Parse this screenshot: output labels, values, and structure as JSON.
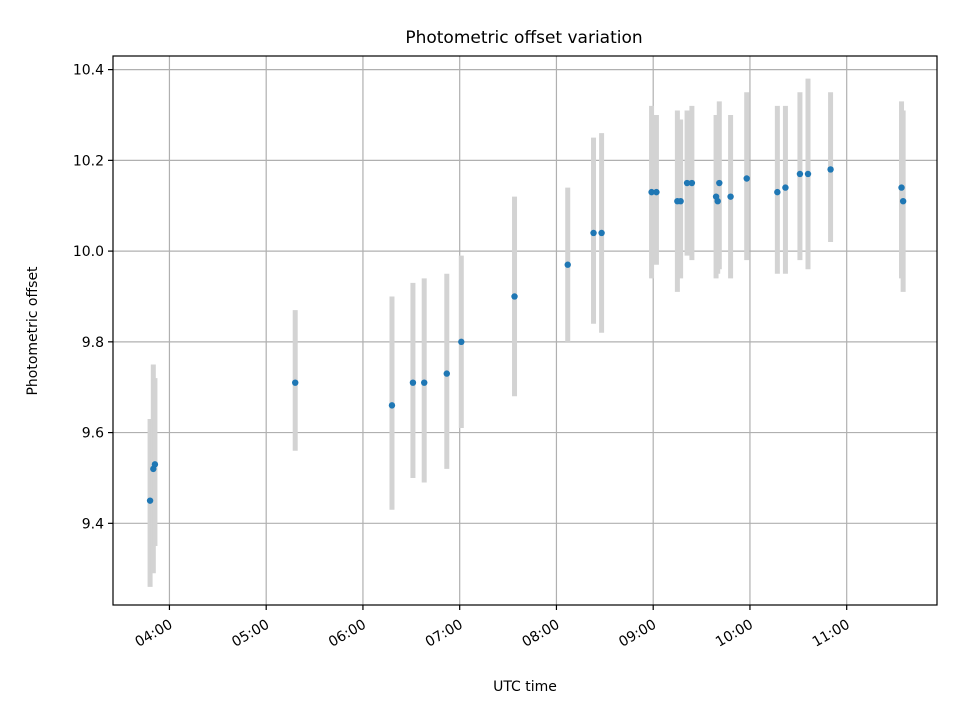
{
  "chart_data": {
    "type": "scatter",
    "title": "Photometric offset variation",
    "xlabel": "UTC time",
    "ylabel": "Photometric offset",
    "x_ticks": [
      "04:00",
      "05:00",
      "06:00",
      "07:00",
      "08:00",
      "09:00",
      "10:00",
      "11:00"
    ],
    "y_ticks": [
      "9.4",
      "9.6",
      "9.8",
      "10.0",
      "10.2",
      "10.4"
    ],
    "xlim": [
      "03:25",
      "11:56"
    ],
    "ylim": [
      9.22,
      10.43
    ],
    "grid": true,
    "colors": {
      "point": "#1f77b4",
      "error_bar": "#d3d3d3"
    },
    "points": [
      {
        "x": "03:48",
        "y": 9.45,
        "y_low": 9.26,
        "y_high": 9.63
      },
      {
        "x": "03:50",
        "y": 9.52,
        "y_low": 9.29,
        "y_high": 9.75
      },
      {
        "x": "03:51",
        "y": 9.53,
        "y_low": 9.35,
        "y_high": 9.72
      },
      {
        "x": "05:18",
        "y": 9.71,
        "y_low": 9.56,
        "y_high": 9.87
      },
      {
        "x": "06:18",
        "y": 9.66,
        "y_low": 9.43,
        "y_high": 9.9
      },
      {
        "x": "06:31",
        "y": 9.71,
        "y_low": 9.5,
        "y_high": 9.93
      },
      {
        "x": "06:38",
        "y": 9.71,
        "y_low": 9.49,
        "y_high": 9.94
      },
      {
        "x": "06:52",
        "y": 9.73,
        "y_low": 9.52,
        "y_high": 9.95
      },
      {
        "x": "07:01",
        "y": 9.8,
        "y_low": 9.61,
        "y_high": 9.99
      },
      {
        "x": "07:34",
        "y": 9.9,
        "y_low": 9.68,
        "y_high": 10.12
      },
      {
        "x": "08:07",
        "y": 9.97,
        "y_low": 9.8,
        "y_high": 10.14
      },
      {
        "x": "08:23",
        "y": 10.04,
        "y_low": 9.84,
        "y_high": 10.25
      },
      {
        "x": "08:28",
        "y": 10.04,
        "y_low": 9.82,
        "y_high": 10.26
      },
      {
        "x": "08:59",
        "y": 10.13,
        "y_low": 9.94,
        "y_high": 10.32
      },
      {
        "x": "09:02",
        "y": 10.13,
        "y_low": 9.97,
        "y_high": 10.3
      },
      {
        "x": "09:15",
        "y": 10.11,
        "y_low": 9.91,
        "y_high": 10.31
      },
      {
        "x": "09:17",
        "y": 10.11,
        "y_low": 9.94,
        "y_high": 10.29
      },
      {
        "x": "09:21",
        "y": 10.15,
        "y_low": 9.99,
        "y_high": 10.31
      },
      {
        "x": "09:24",
        "y": 10.15,
        "y_low": 9.98,
        "y_high": 10.32
      },
      {
        "x": "09:39",
        "y": 10.12,
        "y_low": 9.94,
        "y_high": 10.3
      },
      {
        "x": "09:40",
        "y": 10.11,
        "y_low": 9.95,
        "y_high": 10.28
      },
      {
        "x": "09:41",
        "y": 10.15,
        "y_low": 9.96,
        "y_high": 10.33
      },
      {
        "x": "09:48",
        "y": 10.12,
        "y_low": 9.94,
        "y_high": 10.3
      },
      {
        "x": "09:58",
        "y": 10.16,
        "y_low": 9.98,
        "y_high": 10.35
      },
      {
        "x": "10:17",
        "y": 10.13,
        "y_low": 9.95,
        "y_high": 10.32
      },
      {
        "x": "10:22",
        "y": 10.14,
        "y_low": 9.95,
        "y_high": 10.32
      },
      {
        "x": "10:31",
        "y": 10.17,
        "y_low": 9.98,
        "y_high": 10.35
      },
      {
        "x": "10:36",
        "y": 10.17,
        "y_low": 9.96,
        "y_high": 10.38
      },
      {
        "x": "10:50",
        "y": 10.18,
        "y_low": 10.02,
        "y_high": 10.35
      },
      {
        "x": "11:34",
        "y": 10.14,
        "y_low": 9.94,
        "y_high": 10.33
      },
      {
        "x": "11:35",
        "y": 10.11,
        "y_low": 9.91,
        "y_high": 10.31
      }
    ]
  }
}
